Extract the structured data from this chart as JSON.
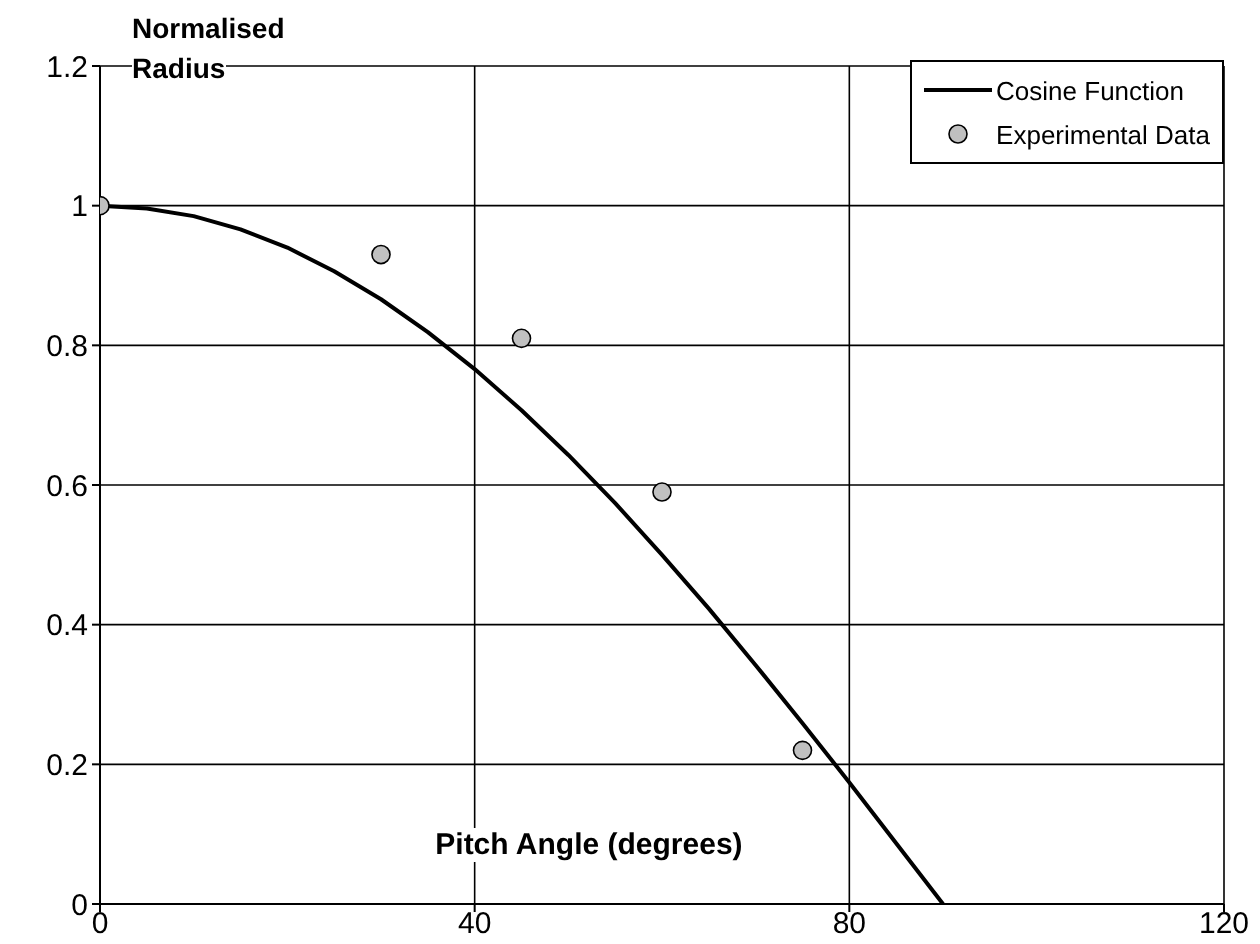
{
  "chart_data": {
    "type": "line",
    "xlabel": "Pitch Angle (degrees)",
    "ylabel": "Normalised Radius",
    "xlim": [
      0,
      120
    ],
    "xticks": [
      0,
      40,
      80,
      120
    ],
    "ylim": [
      0,
      1.2
    ],
    "yticks": [
      0,
      0.2,
      0.4,
      0.6,
      0.8,
      1,
      1.2
    ],
    "grid": true,
    "legend": "top right",
    "series": [
      {
        "name": "Cosine Function",
        "color": "#000000",
        "marker": "none",
        "line_style": "solid",
        "x": [
          0,
          5,
          10,
          15,
          20,
          25,
          30,
          35,
          40,
          45,
          50,
          55,
          60,
          65,
          70,
          75,
          80,
          85,
          90
        ],
        "values": [
          1,
          0.996,
          0.985,
          0.966,
          0.94,
          0.906,
          0.866,
          0.819,
          0.766,
          0.707,
          0.643,
          0.574,
          0.5,
          0.423,
          0.342,
          0.259,
          0.174,
          0.087,
          0
        ]
      },
      {
        "name": "Experimental Data",
        "type": "scatter",
        "color": "#c0c0c0",
        "marker": "circle",
        "x": [
          0,
          30,
          45,
          60,
          75
        ],
        "values": [
          1,
          0.93,
          0.81,
          0.59,
          0.22
        ]
      }
    ]
  }
}
